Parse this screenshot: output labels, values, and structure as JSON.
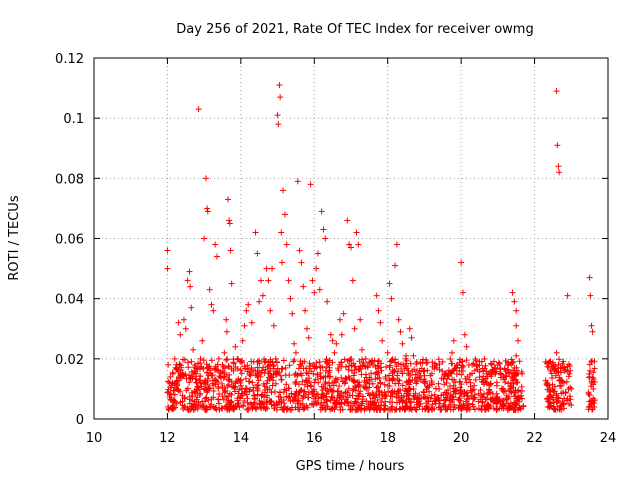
{
  "chart_data": {
    "type": "scatter",
    "title": "Day 256 of 2021, Rate Of TEC Index for receiver owmg",
    "xlabel": "GPS time / hours",
    "ylabel": "ROTI / TECUs",
    "xlim": [
      10,
      24
    ],
    "ylim": [
      0,
      0.12
    ],
    "xticks": [
      "10",
      "12",
      "14",
      "16",
      "18",
      "20",
      "22",
      "24"
    ],
    "yticks": [
      "0",
      "0.02",
      "0.04",
      "0.06",
      "0.08",
      "0.1",
      "0.12"
    ],
    "grid": true,
    "legend": "none",
    "marker": "plus",
    "color": "#ff0000",
    "series": [
      {
        "points": [
          [
            12.0,
            0.056
          ],
          [
            12.0,
            0.05
          ],
          [
            12.02,
            0.018
          ],
          [
            12.05,
            0.012
          ],
          [
            12.1,
            0.008
          ],
          [
            12.15,
            0.015
          ],
          [
            12.2,
            0.02
          ],
          [
            12.25,
            0.01
          ],
          [
            12.3,
            0.032
          ],
          [
            12.35,
            0.028
          ],
          [
            12.4,
            0.014
          ],
          [
            12.45,
            0.033
          ],
          [
            12.5,
            0.03
          ],
          [
            12.55,
            0.046
          ],
          [
            12.6,
            0.049
          ],
          [
            12.62,
            0.044
          ],
          [
            12.65,
            0.037
          ],
          [
            12.7,
            0.023
          ],
          [
            12.75,
            0.016
          ],
          [
            12.8,
            0.012
          ],
          [
            12.85,
            0.103
          ],
          [
            12.9,
            0.02
          ],
          [
            12.95,
            0.026
          ],
          [
            13.0,
            0.06
          ],
          [
            13.05,
            0.08
          ],
          [
            13.08,
            0.07
          ],
          [
            13.1,
            0.069
          ],
          [
            13.15,
            0.043
          ],
          [
            13.2,
            0.038
          ],
          [
            13.25,
            0.036
          ],
          [
            13.3,
            0.058
          ],
          [
            13.35,
            0.054
          ],
          [
            13.4,
            0.02
          ],
          [
            13.45,
            0.014
          ],
          [
            13.5,
            0.018
          ],
          [
            13.55,
            0.022
          ],
          [
            13.6,
            0.033
          ],
          [
            13.62,
            0.029
          ],
          [
            13.65,
            0.073
          ],
          [
            13.68,
            0.066
          ],
          [
            13.7,
            0.065
          ],
          [
            13.72,
            0.056
          ],
          [
            13.75,
            0.045
          ],
          [
            13.8,
            0.016
          ],
          [
            13.85,
            0.024
          ],
          [
            13.9,
            0.02
          ],
          [
            14.0,
            0.013
          ],
          [
            14.05,
            0.026
          ],
          [
            14.1,
            0.031
          ],
          [
            14.15,
            0.036
          ],
          [
            14.2,
            0.038
          ],
          [
            14.3,
            0.032
          ],
          [
            14.35,
            0.019
          ],
          [
            14.4,
            0.062
          ],
          [
            14.45,
            0.055
          ],
          [
            14.5,
            0.039
          ],
          [
            14.55,
            0.046
          ],
          [
            14.6,
            0.041
          ],
          [
            14.7,
            0.05
          ],
          [
            14.75,
            0.046
          ],
          [
            14.8,
            0.036
          ],
          [
            14.85,
            0.05
          ],
          [
            14.9,
            0.031
          ],
          [
            14.95,
            0.02
          ],
          [
            15.0,
            0.101
          ],
          [
            15.02,
            0.098
          ],
          [
            15.05,
            0.111
          ],
          [
            15.07,
            0.107
          ],
          [
            15.1,
            0.062
          ],
          [
            15.12,
            0.052
          ],
          [
            15.15,
            0.076
          ],
          [
            15.2,
            0.068
          ],
          [
            15.25,
            0.058
          ],
          [
            15.3,
            0.046
          ],
          [
            15.35,
            0.04
          ],
          [
            15.4,
            0.035
          ],
          [
            15.45,
            0.025
          ],
          [
            15.5,
            0.022
          ],
          [
            15.55,
            0.079
          ],
          [
            15.6,
            0.056
          ],
          [
            15.65,
            0.052
          ],
          [
            15.7,
            0.044
          ],
          [
            15.75,
            0.036
          ],
          [
            15.8,
            0.03
          ],
          [
            15.85,
            0.027
          ],
          [
            15.9,
            0.078
          ],
          [
            15.95,
            0.046
          ],
          [
            16.0,
            0.042
          ],
          [
            16.05,
            0.05
          ],
          [
            16.1,
            0.055
          ],
          [
            16.15,
            0.043
          ],
          [
            16.2,
            0.069
          ],
          [
            16.25,
            0.063
          ],
          [
            16.3,
            0.06
          ],
          [
            16.35,
            0.039
          ],
          [
            16.4,
            0.018
          ],
          [
            16.45,
            0.028
          ],
          [
            16.5,
            0.026
          ],
          [
            16.55,
            0.022
          ],
          [
            16.6,
            0.025
          ],
          [
            16.7,
            0.033
          ],
          [
            16.75,
            0.028
          ],
          [
            16.8,
            0.035
          ],
          [
            16.9,
            0.066
          ],
          [
            16.95,
            0.058
          ],
          [
            17.0,
            0.057
          ],
          [
            17.05,
            0.046
          ],
          [
            17.1,
            0.03
          ],
          [
            17.15,
            0.062
          ],
          [
            17.2,
            0.058
          ],
          [
            17.25,
            0.033
          ],
          [
            17.3,
            0.023
          ],
          [
            17.4,
            0.02
          ],
          [
            17.5,
            0.019
          ],
          [
            17.6,
            0.018
          ],
          [
            17.7,
            0.041
          ],
          [
            17.75,
            0.036
          ],
          [
            17.8,
            0.032
          ],
          [
            17.85,
            0.026
          ],
          [
            18.0,
            0.022
          ],
          [
            18.05,
            0.045
          ],
          [
            18.1,
            0.04
          ],
          [
            18.2,
            0.051
          ],
          [
            18.25,
            0.058
          ],
          [
            18.3,
            0.033
          ],
          [
            18.35,
            0.029
          ],
          [
            18.4,
            0.025
          ],
          [
            18.5,
            0.021
          ],
          [
            18.6,
            0.03
          ],
          [
            18.65,
            0.027
          ],
          [
            18.7,
            0.021
          ],
          [
            18.8,
            0.016
          ],
          [
            18.9,
            0.013
          ],
          [
            19.0,
            0.012
          ],
          [
            19.2,
            0.012
          ],
          [
            19.4,
            0.01
          ],
          [
            19.6,
            0.012
          ],
          [
            19.75,
            0.022
          ],
          [
            19.8,
            0.026
          ],
          [
            19.9,
            0.018
          ],
          [
            19.95,
            0.016
          ],
          [
            20.0,
            0.052
          ],
          [
            20.05,
            0.042
          ],
          [
            20.1,
            0.028
          ],
          [
            20.15,
            0.024
          ],
          [
            20.3,
            0.018
          ],
          [
            20.4,
            0.013
          ],
          [
            20.5,
            0.019
          ],
          [
            20.6,
            0.016
          ],
          [
            20.7,
            0.012
          ],
          [
            21.4,
            0.042
          ],
          [
            21.45,
            0.039
          ],
          [
            21.5,
            0.036
          ],
          [
            21.5,
            0.031
          ],
          [
            21.55,
            0.026
          ],
          [
            21.5,
            0.021
          ],
          [
            21.45,
            0.017
          ],
          [
            21.5,
            0.013
          ],
          [
            21.55,
            0.009
          ],
          [
            21.5,
            0.005
          ],
          [
            22.3,
            0.019
          ],
          [
            22.35,
            0.012
          ],
          [
            22.4,
            0.009
          ],
          [
            22.5,
            0.007
          ],
          [
            22.6,
            0.109
          ],
          [
            22.62,
            0.091
          ],
          [
            22.65,
            0.084
          ],
          [
            22.67,
            0.082
          ],
          [
            22.6,
            0.022
          ],
          [
            22.65,
            0.018
          ],
          [
            22.7,
            0.013
          ],
          [
            22.8,
            0.012
          ],
          [
            22.9,
            0.041
          ],
          [
            22.95,
            0.015
          ],
          [
            23.0,
            0.01
          ],
          [
            23.5,
            0.047
          ],
          [
            23.52,
            0.041
          ],
          [
            23.55,
            0.031
          ],
          [
            23.58,
            0.029
          ],
          [
            23.5,
            0.014
          ],
          [
            23.55,
            0.012
          ],
          [
            23.6,
            0.01
          ],
          [
            23.5,
            0.008
          ],
          [
            23.55,
            0.005
          ]
        ],
        "band": {
          "coverage": [
            [
              12.0,
              21.7
            ],
            [
              22.3,
              23.0
            ],
            [
              23.45,
              23.65
            ]
          ],
          "ymin": 0.003,
          "ymax": 0.02
        }
      }
    ]
  }
}
